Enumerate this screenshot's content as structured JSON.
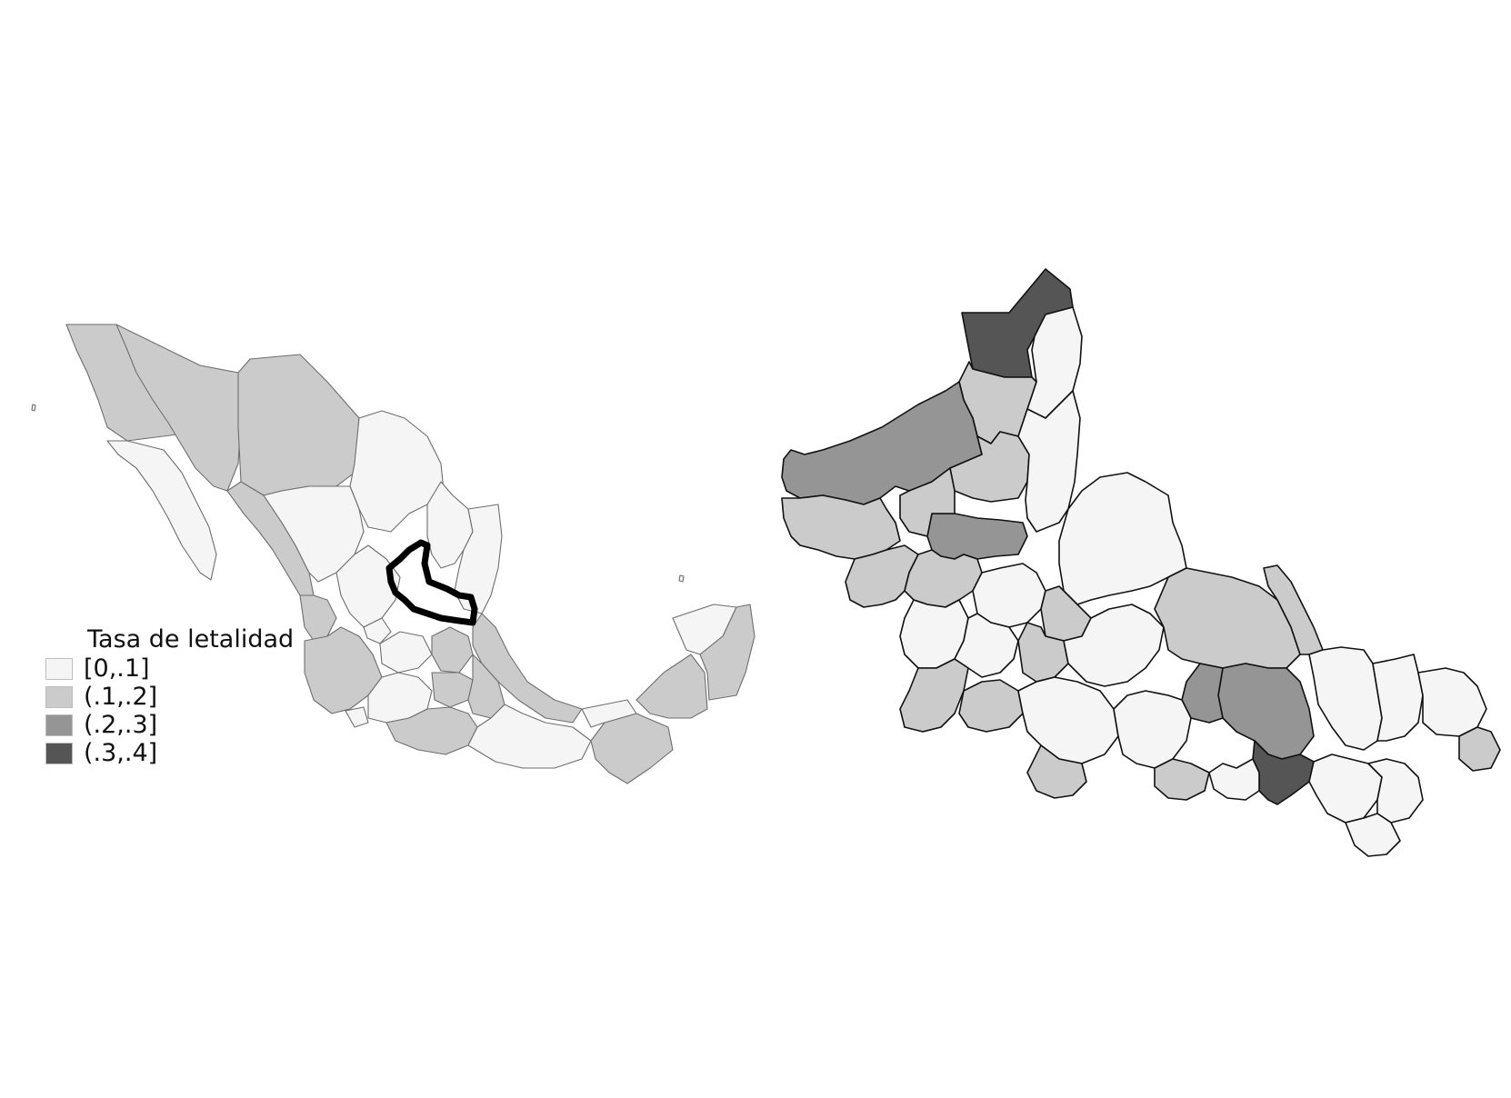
{
  "legend": {
    "title": "Tasa de letalidad",
    "items": [
      {
        "label": "[0,.1]",
        "color": "#f5f5f5"
      },
      {
        "label": "(.1,.2]",
        "color": "#cbcbcb"
      },
      {
        "label": "(.2,.3]",
        "color": "#959595"
      },
      {
        "label": "(.3,.4]",
        "color": "#555555"
      }
    ]
  },
  "maps": {
    "country": {
      "highlight_outline": "San Luis Potosí state outline (bold)"
    },
    "state": {}
  }
}
